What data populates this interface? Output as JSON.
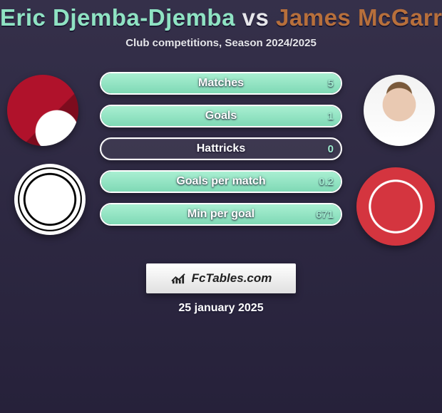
{
  "colors": {
    "background_top": "#35304a",
    "background_bottom": "#26213a",
    "player1_title": "#8fe3c3",
    "player2_title": "#b76f3b",
    "subtitle": "#e6e6ea",
    "pill_fill_top": "#a9efd2",
    "pill_fill_bottom": "#7fd9b5",
    "pill_border": "#ffffff",
    "stat_label": "#ffffff",
    "stat_value": "#9eebcd",
    "brand_box_top": "#ffffff",
    "brand_box_bottom": "#e0e0e0",
    "date_text": "#ffffff",
    "aberdeen_badge": "#d4353f",
    "left_jersey": "#b0122b"
  },
  "header": {
    "player1": "Eric Djemba-Djemba",
    "vs": "vs",
    "player2": "James McGarry",
    "subtitle": "Club competitions, Season 2024/2025",
    "title_fontsize": 33,
    "subtitle_fontsize": 15
  },
  "players": {
    "left": {
      "avatar_name": "eric-djemba-djemba-avatar",
      "club_badge_name": "st-mirren-badge",
      "club_label": "St Mirren"
    },
    "right": {
      "avatar_name": "james-mcgarry-avatar",
      "club_badge_name": "aberdeen-badge",
      "club_label": "Aberdeen"
    }
  },
  "stats": {
    "pill_height": 32,
    "pill_gap": 14,
    "label_fontsize": 16,
    "value_fontsize": 15,
    "rows": [
      {
        "label": "Matches",
        "value": "5",
        "fill_pct_right": 100
      },
      {
        "label": "Goals",
        "value": "1",
        "fill_pct_right": 100
      },
      {
        "label": "Hattricks",
        "value": "0",
        "fill_pct_right": 0
      },
      {
        "label": "Goals per match",
        "value": "0.2",
        "fill_pct_right": 100
      },
      {
        "label": "Min per goal",
        "value": "671",
        "fill_pct_right": 100
      }
    ]
  },
  "brand": {
    "text": "FcTables.com",
    "icon_name": "fctables-chart-icon"
  },
  "footer": {
    "date": "25 january 2025"
  }
}
